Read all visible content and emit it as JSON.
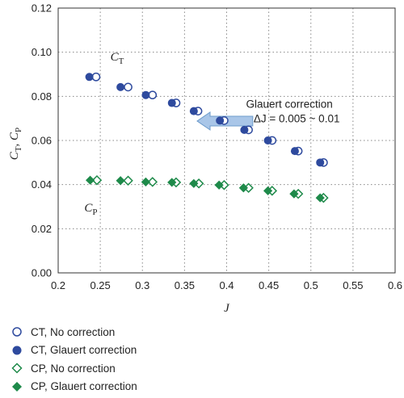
{
  "chart_data": {
    "type": "scatter",
    "x_label": "J",
    "y_label_main": "C",
    "y_label_sub1": "T",
    "y_label_sep": ", C",
    "y_label_sub2": "P",
    "xlim": [
      0.2,
      0.6
    ],
    "ylim": [
      0,
      0.12
    ],
    "x_ticks": [
      "0.2",
      "0.25",
      "0.3",
      "0.35",
      "0.4",
      "0.45",
      "0.5",
      "0.55",
      "0.6"
    ],
    "y_ticks": [
      "0.00",
      "0.02",
      "0.04",
      "0.06",
      "0.08",
      "0.10",
      "0.12"
    ],
    "grid": true,
    "legend_position": "below",
    "series": [
      {
        "name": "CT, No correction",
        "marker": "circle-open",
        "color": "#2E4A9E",
        "x": [
          0.245,
          0.283,
          0.312,
          0.34,
          0.366,
          0.397,
          0.426,
          0.454,
          0.485,
          0.515
        ],
        "y": [
          0.0888,
          0.0842,
          0.0806,
          0.077,
          0.0733,
          0.069,
          0.0648,
          0.06,
          0.0552,
          0.05
        ]
      },
      {
        "name": "CT, Glauert correction",
        "marker": "circle-filled",
        "color": "#2E4A9E",
        "x": [
          0.237,
          0.274,
          0.304,
          0.335,
          0.361,
          0.392,
          0.421,
          0.449,
          0.481,
          0.511
        ],
        "y": [
          0.0888,
          0.0842,
          0.0806,
          0.077,
          0.0733,
          0.069,
          0.0648,
          0.06,
          0.0552,
          0.05
        ]
      },
      {
        "name": "CP, No correction",
        "marker": "diamond-open",
        "color": "#1E8A4A",
        "x": [
          0.246,
          0.283,
          0.312,
          0.34,
          0.367,
          0.397,
          0.426,
          0.454,
          0.485,
          0.515
        ],
        "y": [
          0.042,
          0.0418,
          0.0412,
          0.041,
          0.0405,
          0.0398,
          0.0385,
          0.0372,
          0.0358,
          0.034
        ]
      },
      {
        "name": "CP, Glauert correction",
        "marker": "diamond-filled",
        "color": "#1E8A4A",
        "x": [
          0.238,
          0.274,
          0.304,
          0.335,
          0.361,
          0.391,
          0.42,
          0.449,
          0.48,
          0.511
        ],
        "y": [
          0.042,
          0.0418,
          0.0412,
          0.041,
          0.0405,
          0.0398,
          0.0385,
          0.0372,
          0.0358,
          0.034
        ]
      }
    ],
    "annotations": {
      "ct_main": "C",
      "ct_sub": "T",
      "cp_main": "C",
      "cp_sub": "P",
      "glauert_line1": "Glauert correction",
      "glauert_line2": "ΔJ = 0.005 ~ 0.01"
    }
  }
}
